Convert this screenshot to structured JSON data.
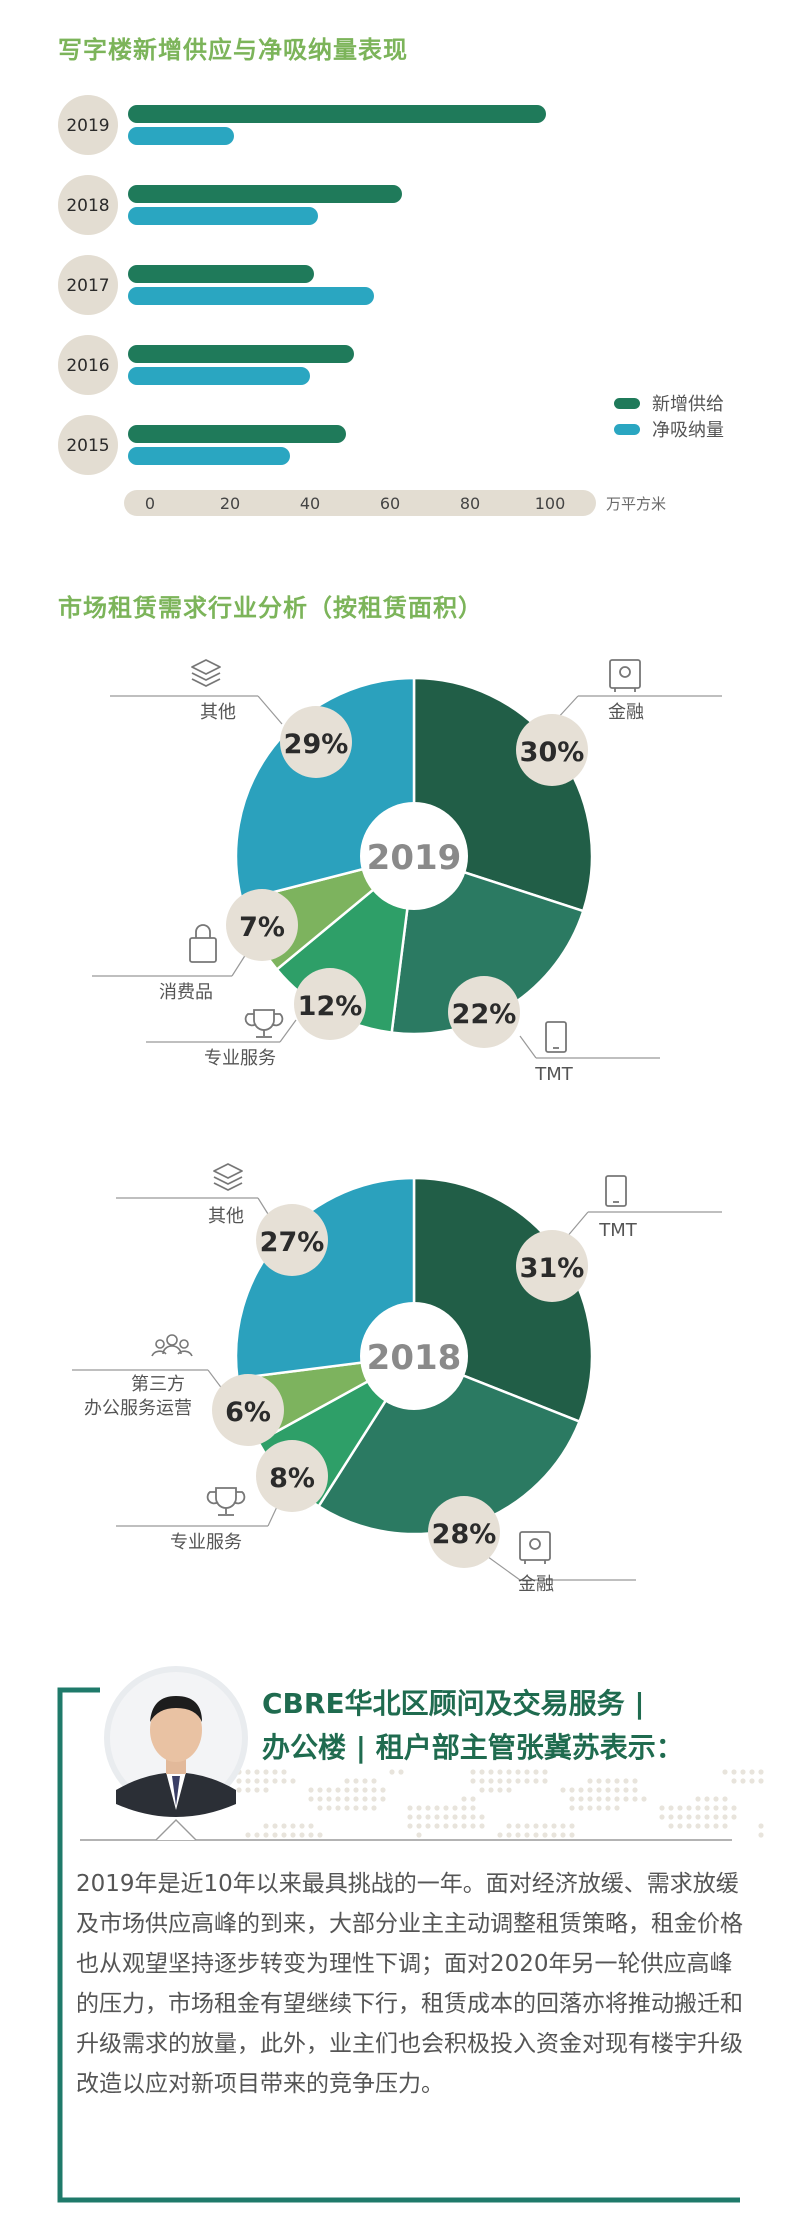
{
  "section1": {
    "title": "写字楼新增供应与净吸纳量表现"
  },
  "section2": {
    "title": "市场租赁需求行业分析（按租赁面积）"
  },
  "bar_chart": {
    "legend": {
      "supply": "新增供给",
      "absorption": "净吸纳量"
    },
    "unit": "万平方米",
    "colors": {
      "supply": "#1f7a5a",
      "absorption": "#2aa6c1",
      "year_badge": "#e3ddd2"
    }
  },
  "pie_2019": {
    "year": "2019",
    "labels": {
      "finance": "金融",
      "tmt": "TMT",
      "prof": "专业服务",
      "consumer": "消费品",
      "other": "其他"
    },
    "pct": {
      "finance": "30%",
      "tmt": "22%",
      "prof": "12%",
      "consumer": "7%",
      "other": "29%"
    }
  },
  "pie_2018": {
    "year": "2018",
    "labels": {
      "tmt": "TMT",
      "finance": "金融",
      "prof": "专业服务",
      "thirdparty_1": "第三方",
      "thirdparty_2": "办公服务运营",
      "other": "其他"
    },
    "pct": {
      "tmt": "31%",
      "finance": "28%",
      "prof": "8%",
      "thirdparty": "6%",
      "other": "27%"
    }
  },
  "quote": {
    "title_line1": "CBRE华北区顾问及交易服务 |",
    "title_line2": "办公楼 | 租户部主管张冀苏表示：",
    "body": "2019年是近10年以来最具挑战的一年。面对经济放缓、需求放缓及市场供应高峰的到来，大部分业主主动调整租赁策略，租金价格也从观望坚持逐步转变为理性下调；面对2020年另一轮供应高峰的压力，市场租金有望继续下行，租赁成本的回落亦将推动搬迁和升级需求的放量，此外，业主们也会积极投入资金对现有楼宇升级改造以应对新项目带来的竞争压力。"
  },
  "chart_data": [
    {
      "type": "bar",
      "orientation": "horizontal",
      "title": "写字楼新增供应与净吸纳量表现",
      "categories": [
        "2019",
        "2018",
        "2017",
        "2016",
        "2015"
      ],
      "series": [
        {
          "name": "新增供给",
          "color": "#1f7a5a",
          "values": [
            99,
            63,
            41,
            51,
            49
          ]
        },
        {
          "name": "净吸纳量",
          "color": "#2aa6c1",
          "values": [
            21,
            42,
            56,
            40,
            35
          ]
        }
      ],
      "xlim": [
        0,
        100
      ],
      "xticks": [
        "0",
        "20",
        "40",
        "60",
        "80",
        "100"
      ],
      "xlabel": "万平方米",
      "legend": "right"
    },
    {
      "type": "pie",
      "title": "2019",
      "categories": [
        "金融",
        "TMT",
        "专业服务",
        "消费品",
        "其他"
      ],
      "values": [
        30,
        22,
        12,
        7,
        29
      ],
      "colors": [
        "#215e47",
        "#2b7a62",
        "#2e9f68",
        "#7db35e",
        "#2ba1bd"
      ]
    },
    {
      "type": "pie",
      "title": "2018",
      "categories": [
        "TMT",
        "金融",
        "专业服务",
        "第三方办公服务运营",
        "其他"
      ],
      "values": [
        31,
        28,
        8,
        6,
        27
      ],
      "colors": [
        "#215e47",
        "#2b7a62",
        "#2e9f68",
        "#7db35e",
        "#2ba1bd"
      ]
    }
  ]
}
